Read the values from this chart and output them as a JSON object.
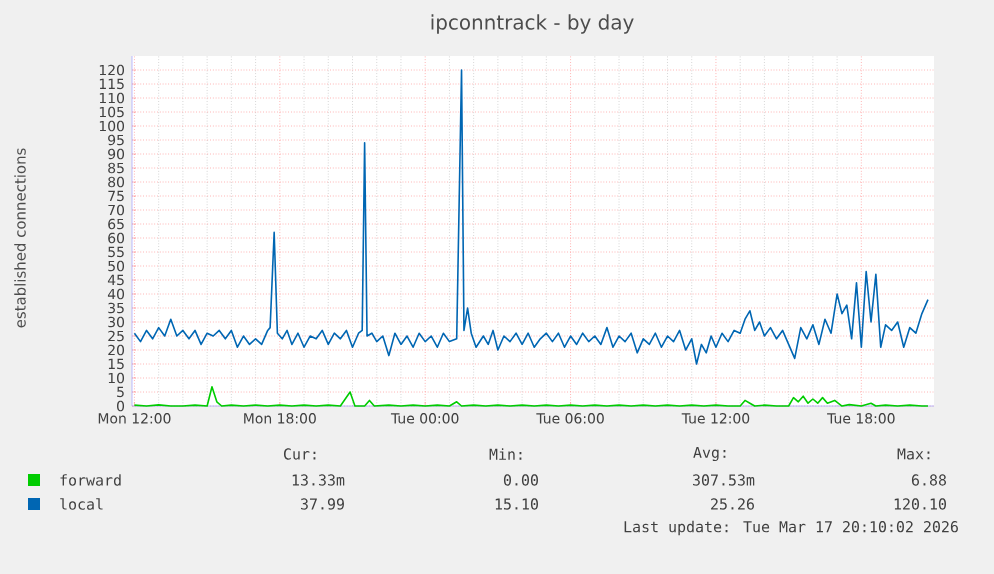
{
  "chart_data": {
    "type": "line",
    "title": "ipconntrack - by day",
    "ylabel": "established connections",
    "xlim": [
      "2026-03-16T11:54",
      "2026-03-17T21:00"
    ],
    "ylim": [
      0,
      125
    ],
    "xticks": [
      {
        "value": "2026-03-16T12:00",
        "label": "Mon 12:00"
      },
      {
        "value": "2026-03-16T18:00",
        "label": "Mon 18:00"
      },
      {
        "value": "2026-03-17T00:00",
        "label": "Tue 00:00"
      },
      {
        "value": "2026-03-17T06:00",
        "label": "Tue 06:00"
      },
      {
        "value": "2026-03-17T12:00",
        "label": "Tue 12:00"
      },
      {
        "value": "2026-03-17T18:00",
        "label": "Tue 18:00"
      }
    ],
    "yticks": [
      0,
      5,
      10,
      15,
      20,
      25,
      30,
      35,
      40,
      45,
      50,
      55,
      60,
      65,
      70,
      75,
      80,
      85,
      90,
      95,
      100,
      105,
      110,
      115,
      120
    ],
    "grid": true,
    "legend": "bottom",
    "series": [
      {
        "name": "forward",
        "color": "#00cc00",
        "x": [
          "2026-03-16T12:00",
          "2026-03-16T12:30",
          "2026-03-16T13:00",
          "2026-03-16T13:30",
          "2026-03-16T14:00",
          "2026-03-16T14:30",
          "2026-03-16T15:00",
          "2026-03-16T15:12",
          "2026-03-16T15:24",
          "2026-03-16T15:36",
          "2026-03-16T16:00",
          "2026-03-16T16:30",
          "2026-03-16T17:00",
          "2026-03-16T17:30",
          "2026-03-16T18:00",
          "2026-03-16T18:30",
          "2026-03-16T19:00",
          "2026-03-16T19:30",
          "2026-03-16T20:00",
          "2026-03-16T20:30",
          "2026-03-16T20:54",
          "2026-03-16T21:06",
          "2026-03-16T21:30",
          "2026-03-16T21:42",
          "2026-03-16T21:54",
          "2026-03-16T22:30",
          "2026-03-16T23:00",
          "2026-03-16T23:30",
          "2026-03-17T00:00",
          "2026-03-17T00:30",
          "2026-03-17T01:00",
          "2026-03-17T01:18",
          "2026-03-17T01:30",
          "2026-03-17T02:00",
          "2026-03-17T02:30",
          "2026-03-17T03:00",
          "2026-03-17T03:30",
          "2026-03-17T04:00",
          "2026-03-17T04:30",
          "2026-03-17T05:00",
          "2026-03-17T05:30",
          "2026-03-17T06:00",
          "2026-03-17T06:30",
          "2026-03-17T07:00",
          "2026-03-17T07:30",
          "2026-03-17T08:00",
          "2026-03-17T08:30",
          "2026-03-17T09:00",
          "2026-03-17T09:30",
          "2026-03-17T10:00",
          "2026-03-17T10:30",
          "2026-03-17T11:00",
          "2026-03-17T11:30",
          "2026-03-17T12:00",
          "2026-03-17T12:30",
          "2026-03-17T13:00",
          "2026-03-17T13:12",
          "2026-03-17T13:24",
          "2026-03-17T13:36",
          "2026-03-17T14:00",
          "2026-03-17T14:30",
          "2026-03-17T15:00",
          "2026-03-17T15:12",
          "2026-03-17T15:24",
          "2026-03-17T15:36",
          "2026-03-17T15:48",
          "2026-03-17T16:00",
          "2026-03-17T16:12",
          "2026-03-17T16:24",
          "2026-03-17T16:36",
          "2026-03-17T16:54",
          "2026-03-17T17:12",
          "2026-03-17T17:30",
          "2026-03-17T18:00",
          "2026-03-17T18:24",
          "2026-03-17T18:36",
          "2026-03-17T19:00",
          "2026-03-17T19:30",
          "2026-03-17T20:00",
          "2026-03-17T20:30",
          "2026-03-17T20:45"
        ],
        "values": [
          0.3,
          0,
          0.4,
          0,
          0,
          0.3,
          0,
          6.9,
          1.5,
          0,
          0.3,
          0,
          0.3,
          0,
          0.3,
          0,
          0.3,
          0,
          0.3,
          0,
          5,
          0,
          0,
          2,
          0,
          0.3,
          0,
          0.3,
          0,
          0.3,
          0,
          1.5,
          0,
          0.3,
          0,
          0.3,
          0,
          0.3,
          0,
          0.3,
          0,
          0.3,
          0,
          0.3,
          0,
          0.3,
          0,
          0.3,
          0,
          0.3,
          0,
          0.3,
          0,
          0.3,
          0,
          0,
          2,
          1,
          0,
          0.3,
          0,
          0,
          3,
          1.5,
          3.5,
          1,
          2.5,
          1,
          3,
          1,
          2,
          0,
          0.5,
          0,
          1,
          0,
          0.3,
          0,
          0.3,
          0,
          0
        ]
      },
      {
        "name": "local",
        "color": "#0066b3",
        "x": [
          "2026-03-16T12:00",
          "2026-03-16T12:15",
          "2026-03-16T12:30",
          "2026-03-16T12:45",
          "2026-03-16T13:00",
          "2026-03-16T13:15",
          "2026-03-16T13:30",
          "2026-03-16T13:45",
          "2026-03-16T14:00",
          "2026-03-16T14:15",
          "2026-03-16T14:30",
          "2026-03-16T14:45",
          "2026-03-16T15:00",
          "2026-03-16T15:15",
          "2026-03-16T15:30",
          "2026-03-16T15:45",
          "2026-03-16T16:00",
          "2026-03-16T16:15",
          "2026-03-16T16:30",
          "2026-03-16T16:45",
          "2026-03-16T17:00",
          "2026-03-16T17:15",
          "2026-03-16T17:30",
          "2026-03-16T17:36",
          "2026-03-16T17:46",
          "2026-03-16T17:54",
          "2026-03-16T18:06",
          "2026-03-16T18:18",
          "2026-03-16T18:30",
          "2026-03-16T18:45",
          "2026-03-16T19:00",
          "2026-03-16T19:15",
          "2026-03-16T19:30",
          "2026-03-16T19:45",
          "2026-03-16T20:00",
          "2026-03-16T20:15",
          "2026-03-16T20:30",
          "2026-03-16T20:45",
          "2026-03-16T21:00",
          "2026-03-16T21:15",
          "2026-03-16T21:24",
          "2026-03-16T21:30",
          "2026-03-16T21:36",
          "2026-03-16T21:48",
          "2026-03-16T22:00",
          "2026-03-16T22:15",
          "2026-03-16T22:30",
          "2026-03-16T22:45",
          "2026-03-16T23:00",
          "2026-03-16T23:15",
          "2026-03-16T23:30",
          "2026-03-16T23:45",
          "2026-03-17T00:00",
          "2026-03-17T00:15",
          "2026-03-17T00:30",
          "2026-03-17T00:45",
          "2026-03-17T01:00",
          "2026-03-17T01:18",
          "2026-03-17T01:30",
          "2026-03-17T01:36",
          "2026-03-17T01:45",
          "2026-03-17T01:54",
          "2026-03-17T02:06",
          "2026-03-17T02:24",
          "2026-03-17T02:36",
          "2026-03-17T02:48",
          "2026-03-17T03:00",
          "2026-03-17T03:15",
          "2026-03-17T03:30",
          "2026-03-17T03:45",
          "2026-03-17T04:00",
          "2026-03-17T04:15",
          "2026-03-17T04:30",
          "2026-03-17T04:45",
          "2026-03-17T05:00",
          "2026-03-17T05:15",
          "2026-03-17T05:30",
          "2026-03-17T05:45",
          "2026-03-17T06:00",
          "2026-03-17T06:15",
          "2026-03-17T06:30",
          "2026-03-17T06:45",
          "2026-03-17T07:00",
          "2026-03-17T07:15",
          "2026-03-17T07:30",
          "2026-03-17T07:45",
          "2026-03-17T08:00",
          "2026-03-17T08:15",
          "2026-03-17T08:30",
          "2026-03-17T08:45",
          "2026-03-17T09:00",
          "2026-03-17T09:15",
          "2026-03-17T09:30",
          "2026-03-17T09:45",
          "2026-03-17T10:00",
          "2026-03-17T10:15",
          "2026-03-17T10:30",
          "2026-03-17T10:45",
          "2026-03-17T11:00",
          "2026-03-17T11:12",
          "2026-03-17T11:24",
          "2026-03-17T11:36",
          "2026-03-17T11:48",
          "2026-03-17T12:00",
          "2026-03-17T12:15",
          "2026-03-17T12:30",
          "2026-03-17T12:45",
          "2026-03-17T13:00",
          "2026-03-17T13:12",
          "2026-03-17T13:24",
          "2026-03-17T13:36",
          "2026-03-17T13:48",
          "2026-03-17T14:00",
          "2026-03-17T14:15",
          "2026-03-17T14:30",
          "2026-03-17T14:45",
          "2026-03-17T15:00",
          "2026-03-17T15:15",
          "2026-03-17T15:30",
          "2026-03-17T15:45",
          "2026-03-17T16:00",
          "2026-03-17T16:15",
          "2026-03-17T16:30",
          "2026-03-17T16:45",
          "2026-03-17T17:00",
          "2026-03-17T17:12",
          "2026-03-17T17:24",
          "2026-03-17T17:36",
          "2026-03-17T17:48",
          "2026-03-17T18:00",
          "2026-03-17T18:12",
          "2026-03-17T18:24",
          "2026-03-17T18:36",
          "2026-03-17T18:48",
          "2026-03-17T19:00",
          "2026-03-17T19:15",
          "2026-03-17T19:30",
          "2026-03-17T19:45",
          "2026-03-17T20:00",
          "2026-03-17T20:15",
          "2026-03-17T20:30",
          "2026-03-17T20:45"
        ],
        "values": [
          26,
          23,
          27,
          24,
          28,
          25,
          31,
          25,
          27,
          24,
          27,
          22,
          26,
          25,
          27,
          24,
          27,
          21,
          25,
          22,
          24,
          22,
          27,
          28,
          62,
          26,
          24,
          27,
          22,
          26,
          21,
          25,
          24,
          27,
          22,
          26,
          24,
          27,
          21,
          26,
          27,
          94,
          25,
          26,
          23,
          25,
          18,
          26,
          22,
          25,
          21,
          26,
          23,
          25,
          21,
          26,
          23,
          24,
          120,
          27,
          35,
          26,
          21,
          25,
          22,
          27,
          20,
          25,
          23,
          26,
          22,
          26,
          21,
          24,
          26,
          23,
          26,
          21,
          25,
          22,
          26,
          23,
          25,
          22,
          28,
          21,
          25,
          23,
          26,
          19,
          24,
          22,
          26,
          21,
          25,
          23,
          27,
          20,
          24,
          15,
          22,
          19,
          25,
          21,
          26,
          23,
          27,
          26,
          31,
          34,
          27,
          30,
          25,
          28,
          24,
          27,
          22,
          17,
          28,
          24,
          29,
          22,
          31,
          26,
          40,
          33,
          36,
          24,
          44,
          21,
          48,
          30,
          47,
          21,
          29,
          27,
          30,
          21,
          28,
          26,
          33,
          38
        ]
      }
    ],
    "annotations": [
      "Cur:",
      "Min:",
      "Avg:",
      "Max:",
      "13.33m",
      "0.00",
      "307.53m",
      "6.88",
      "37.99",
      "15.10",
      "25.26",
      "120.10",
      "Last update: Tue Mar 17 20:10:02 2026"
    ]
  }
}
